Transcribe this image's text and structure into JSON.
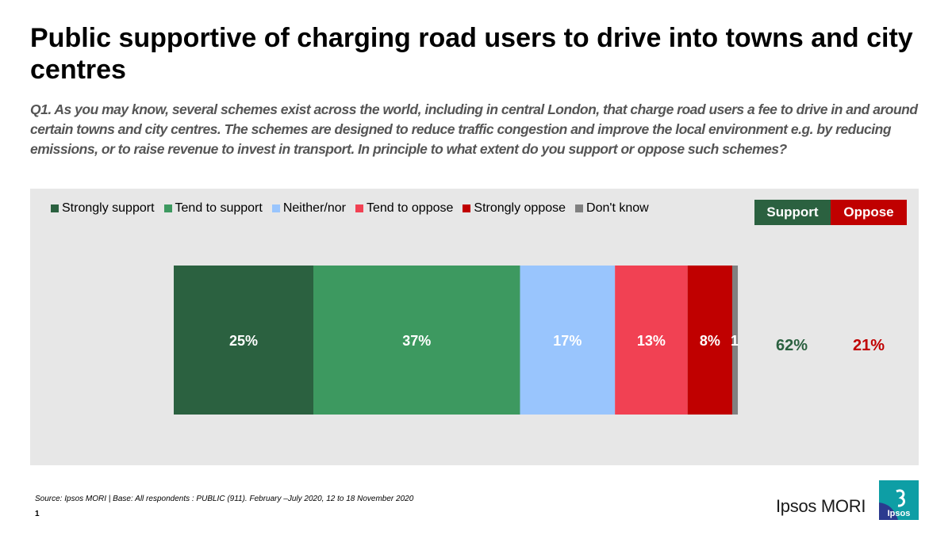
{
  "title": "Public supportive of charging road users to drive into towns and city centres",
  "question": "Q1. As you may know, several schemes exist across the world, including in central London, that charge road users a fee to drive in and around certain towns and city centres. The schemes are designed to reduce traffic congestion and improve the local environment e.g. by reducing emissions, or to raise revenue to invest in transport. In principle to what extent do you support or oppose such schemes?",
  "summary": {
    "support_label": "Support",
    "oppose_label": "Oppose",
    "support_value": "62%",
    "oppose_value": "21%",
    "support_color": "#2b6140",
    "oppose_color": "#c00000"
  },
  "chart_data": {
    "type": "bar",
    "orientation": "horizontal-stacked",
    "categories": [
      ""
    ],
    "legend_placement": "top-left",
    "series": [
      {
        "name": "Strongly support",
        "values": [
          25
        ],
        "label": "25%",
        "color": "#2b6140",
        "label_color": "#ffffff"
      },
      {
        "name": "Tend to support",
        "values": [
          37
        ],
        "label": "37%",
        "color": "#3d9960",
        "label_color": "#ffffff"
      },
      {
        "name": "Neither/nor",
        "values": [
          17
        ],
        "label": "17%",
        "color": "#99c5fd",
        "label_color": "#ffffff"
      },
      {
        "name": "Tend to oppose",
        "values": [
          13
        ],
        "label": "13%",
        "color": "#f14153",
        "label_color": "#ffffff"
      },
      {
        "name": "Strongly oppose",
        "values": [
          8
        ],
        "label": "8%",
        "color": "#c00000",
        "label_color": "#ffffff"
      },
      {
        "name": "Don't know",
        "values": [
          1
        ],
        "label": "1",
        "color": "#808080",
        "label_color": "#ffffff"
      }
    ]
  },
  "footer": {
    "source": "Source: Ipsos MORI | Base: All respondents : PUBLIC (911). February –July 2020, 12 to 18 November 2020",
    "page_number": "1",
    "brand": "Ipsos MORI",
    "logo_text": "Ipsos",
    "logo_icon": "ipsos-logo-icon",
    "logo_color": "#0e9ea5",
    "logo_color_dark": "#2b3b8f"
  }
}
